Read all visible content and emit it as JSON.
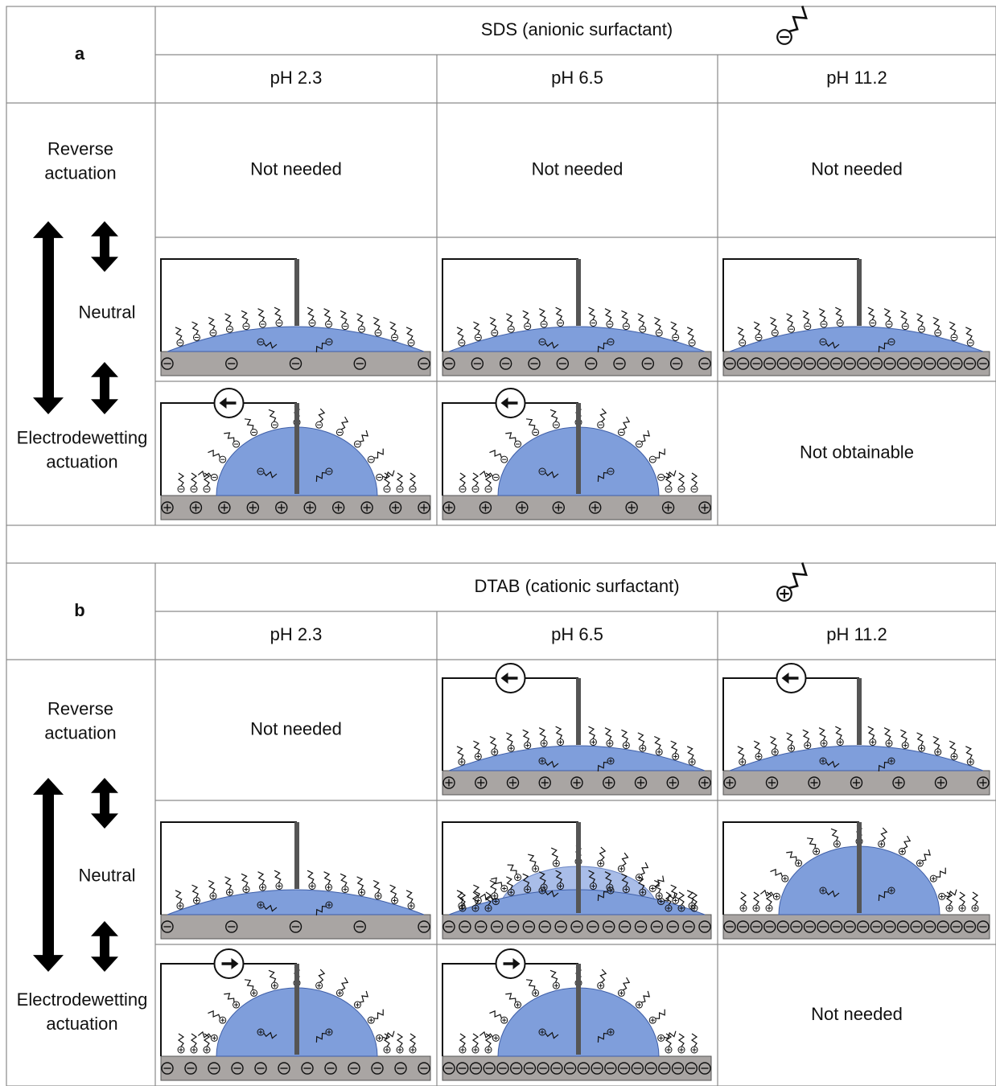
{
  "panels": [
    {
      "label": "a",
      "surfactant": "SDS (anionic surfactant)",
      "ph": [
        "pH 2.3",
        "pH 6.5",
        "pH 11.2"
      ],
      "row_labels": [
        [
          "Reverse",
          "actuation"
        ],
        [
          "Neutral"
        ],
        [
          "Electrodewetting",
          "actuation"
        ]
      ],
      "notes": [
        "Not needed",
        "Not needed",
        "Not needed",
        "Not obtainable"
      ]
    },
    {
      "label": "b",
      "surfactant": "DTAB (cationic surfactant)",
      "ph": [
        "pH 2.3",
        "pH 6.5",
        "pH 11.2"
      ],
      "row_labels": [
        [
          "Reverse",
          "actuation"
        ],
        [
          "Neutral"
        ],
        [
          "Electrodewetting",
          "actuation"
        ]
      ],
      "notes": [
        "Not needed",
        "Not needed"
      ]
    }
  ]
}
